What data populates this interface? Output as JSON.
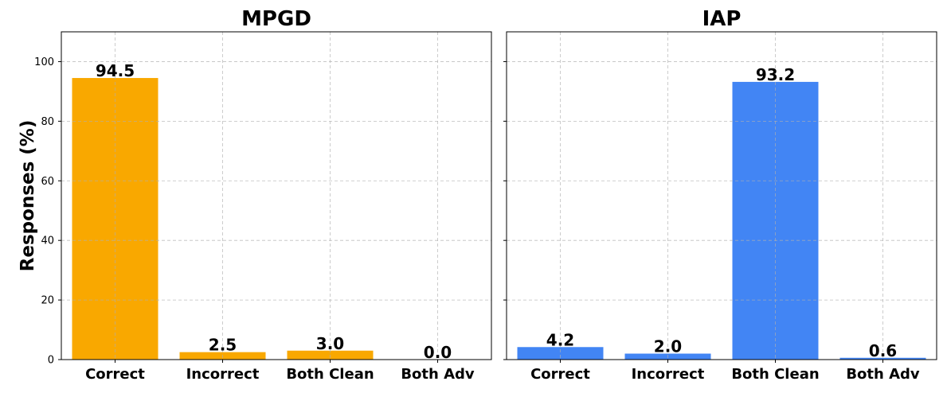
{
  "chart_data": [
    {
      "type": "bar",
      "title": "MPGD",
      "categories": [
        "Correct",
        "Incorrect",
        "Both Clean",
        "Both Adv"
      ],
      "values": [
        94.5,
        2.5,
        3.0,
        0.0
      ],
      "value_labels": [
        "94.5",
        "2.5",
        "3.0",
        "0.0"
      ],
      "color": "#F9A800",
      "xlabel": "",
      "ylabel": "Responses (%)",
      "ylim": [
        0,
        110
      ],
      "yticks": [
        0,
        20,
        40,
        60,
        80,
        100
      ],
      "grid": true
    },
    {
      "type": "bar",
      "title": "IAP",
      "categories": [
        "Correct",
        "Incorrect",
        "Both Clean",
        "Both Adv"
      ],
      "values": [
        4.2,
        2.0,
        93.2,
        0.6
      ],
      "value_labels": [
        "4.2",
        "2.0",
        "93.2",
        "0.6"
      ],
      "color": "#4285F4",
      "xlabel": "",
      "ylabel": "",
      "ylim": [
        0,
        110
      ],
      "yticks": [
        0,
        20,
        40,
        60,
        80,
        100
      ],
      "grid": true
    }
  ]
}
